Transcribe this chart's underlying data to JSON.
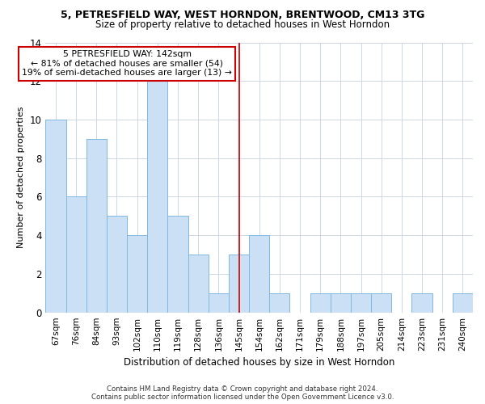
{
  "title1": "5, PETRESFIELD WAY, WEST HORNDON, BRENTWOOD, CM13 3TG",
  "title2": "Size of property relative to detached houses in West Horndon",
  "xlabel": "Distribution of detached houses by size in West Horndon",
  "ylabel": "Number of detached properties",
  "categories": [
    "67sqm",
    "76sqm",
    "84sqm",
    "93sqm",
    "102sqm",
    "110sqm",
    "119sqm",
    "128sqm",
    "136sqm",
    "145sqm",
    "154sqm",
    "162sqm",
    "171sqm",
    "179sqm",
    "188sqm",
    "197sqm",
    "205sqm",
    "214sqm",
    "223sqm",
    "231sqm",
    "240sqm"
  ],
  "values": [
    10,
    6,
    9,
    5,
    4,
    12,
    5,
    3,
    1,
    3,
    4,
    1,
    0,
    1,
    1,
    1,
    1,
    0,
    1,
    0,
    1
  ],
  "bar_color": "#cce0f5",
  "bar_edge_color": "#7fb8e0",
  "vline_x": 9.0,
  "vline_color": "#cc0000",
  "annotation_text": "5 PETRESFIELD WAY: 142sqm\n← 81% of detached houses are smaller (54)\n19% of semi-detached houses are larger (13) →",
  "annotation_box_color": "#ffffff",
  "annotation_box_edge": "#cc0000",
  "ylim": [
    0,
    14
  ],
  "yticks": [
    0,
    2,
    4,
    6,
    8,
    10,
    12,
    14
  ],
  "footer": "Contains HM Land Registry data © Crown copyright and database right 2024.\nContains public sector information licensed under the Open Government Licence v3.0.",
  "bg_color": "#ffffff",
  "grid_color": "#ccd6e8",
  "title1_fontsize": 9,
  "title2_fontsize": 8.5,
  "xlabel_fontsize": 8.5,
  "ylabel_fontsize": 8,
  "annotation_fontsize": 7.8,
  "tick_fontsize": 7.5,
  "ytick_fontsize": 8.5,
  "footer_fontsize": 6.2
}
